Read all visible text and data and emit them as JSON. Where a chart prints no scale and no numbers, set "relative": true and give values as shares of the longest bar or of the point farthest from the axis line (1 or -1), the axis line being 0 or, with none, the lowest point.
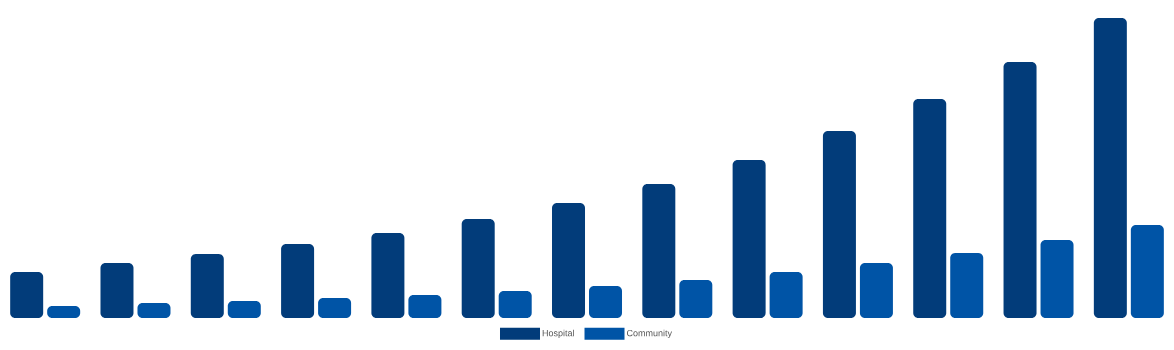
{
  "chart_data": {
    "type": "bar",
    "relative": true,
    "legend": "bottom",
    "categories": [
      null,
      null,
      null,
      null,
      null,
      null,
      null,
      null,
      null,
      null,
      null,
      null,
      null
    ],
    "series": [
      {
        "name": "Hospital",
        "color": "#023c7a",
        "values": [
          0.153,
          0.183,
          0.213,
          0.247,
          0.283,
          0.33,
          0.383,
          0.447,
          0.527,
          0.623,
          0.73,
          0.853,
          1
        ]
      },
      {
        "name": "Community",
        "color": "#0054a6",
        "values": [
          0.04,
          0.05,
          0.057,
          0.067,
          0.077,
          0.09,
          0.107,
          0.127,
          0.153,
          0.183,
          0.217,
          0.26,
          0.31
        ]
      }
    ]
  }
}
